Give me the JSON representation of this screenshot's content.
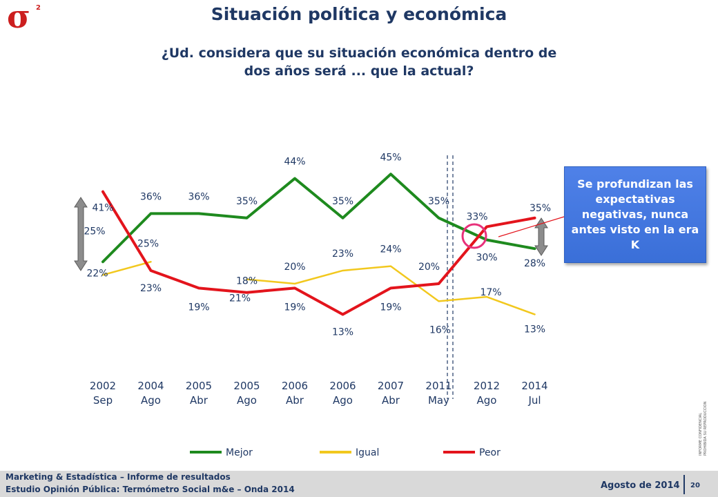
{
  "header": {
    "title": "Situación política y económica",
    "subtitle_line1": "¿Ud. considera que su situación económica dentro de",
    "subtitle_line2": "dos años será ... que la actual?",
    "logo_symbol": "σ",
    "logo_superscript": "2"
  },
  "callout": {
    "text": "Se profundizan las expectativas negativas, nunca antes visto en la era K"
  },
  "side_note": {
    "line1": "INFORME CONFIDENCIAL",
    "line2": "PROHIBIDA SU REPRODUCCION"
  },
  "footer": {
    "line1": "Marketing & Estadística – Informe de resultados",
    "line2": "Estudio Opinión Pública: Termómetro Social m&e – Onda 2014",
    "date": "Agosto de 2014",
    "page": "20"
  },
  "chart_data": {
    "type": "line",
    "categories": [
      [
        "2002",
        "Sep"
      ],
      [
        "2004",
        "Ago"
      ],
      [
        "2005",
        "Abr"
      ],
      [
        "2005",
        "Ago"
      ],
      [
        "2006",
        "Abr"
      ],
      [
        "2006",
        "Ago"
      ],
      [
        "2007",
        "Abr"
      ],
      [
        "2011",
        "May"
      ],
      [
        "2012",
        "Ago"
      ],
      [
        "2014",
        "Jul"
      ]
    ],
    "ylim": [
      0,
      50
    ],
    "legend_position": "bottom",
    "series": [
      {
        "name": "Mejor",
        "color": "#1e8a1e",
        "values": [
          25,
          36,
          36,
          35,
          44,
          35,
          45,
          35,
          30,
          28
        ],
        "labels": [
          "25%",
          "36%",
          "36%",
          "35%",
          "44%",
          "35%",
          "45%",
          "35%",
          "30%",
          "28%"
        ]
      },
      {
        "name": "Igual",
        "color": "#f2c81e",
        "values": [
          22,
          25,
          null,
          21,
          20,
          23,
          24,
          16,
          17,
          13
        ],
        "labels": [
          "22%",
          "25%",
          null,
          "21%",
          "20%",
          "23%",
          "24%",
          "16%",
          "17%",
          "13%"
        ]
      },
      {
        "name": "Peor",
        "color": "#e3141c",
        "values": [
          41,
          23,
          19,
          18,
          19,
          13,
          19,
          20,
          33,
          35
        ],
        "labels": [
          "41%",
          "23%",
          "19%",
          "18%",
          "19%",
          "13%",
          "19%",
          "20%",
          "33%",
          "35%"
        ]
      }
    ]
  }
}
